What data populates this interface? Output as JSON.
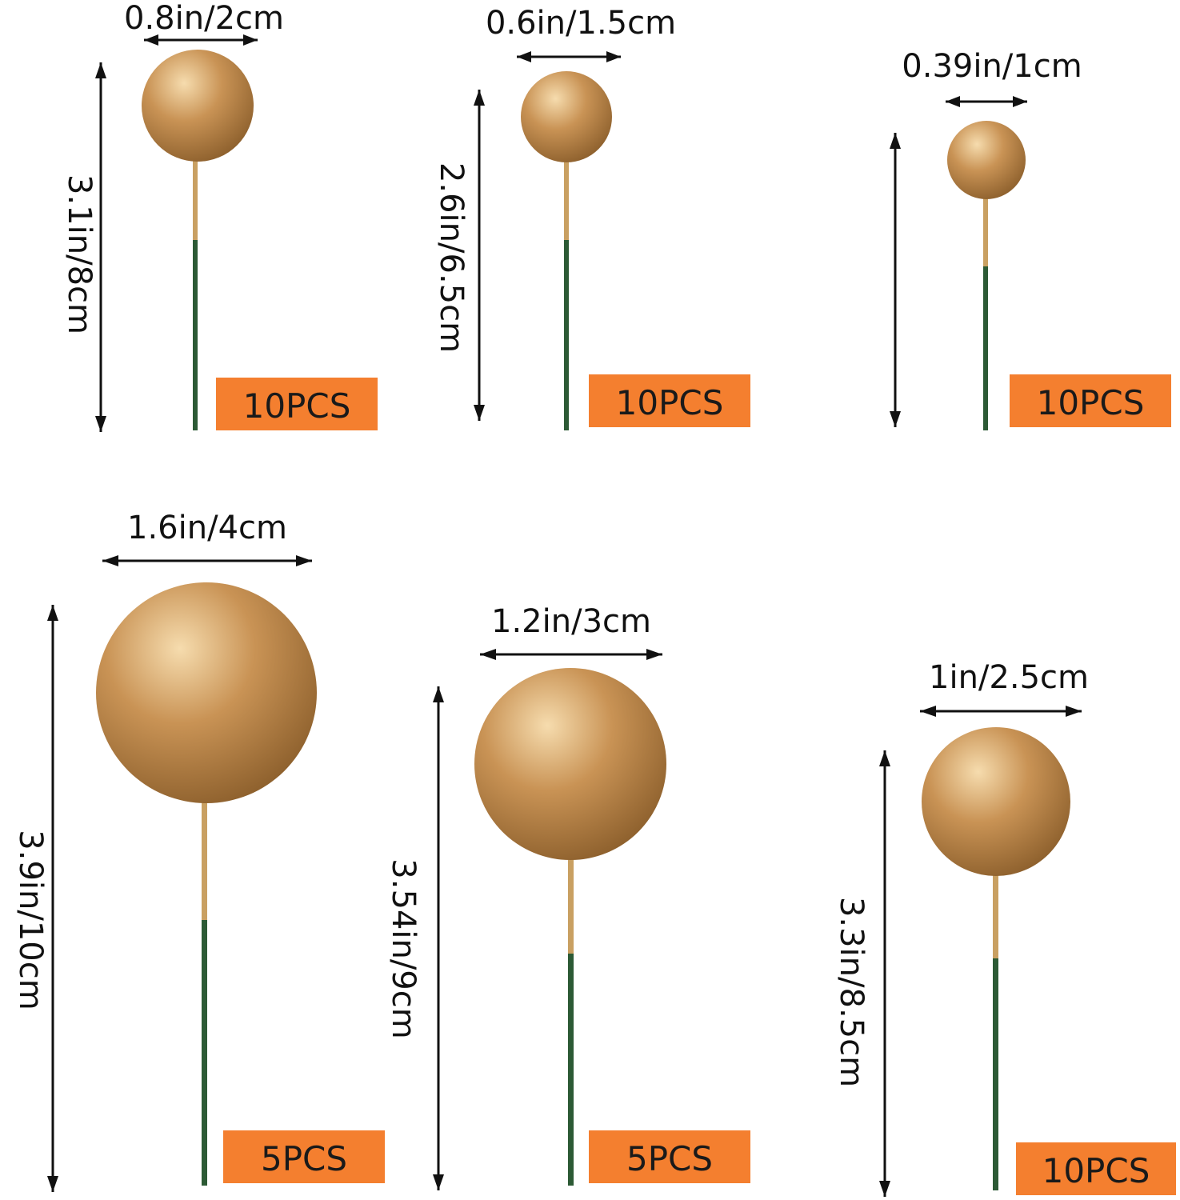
{
  "colors": {
    "badge": "#f47f2f",
    "gold_light": "#f6dcae",
    "gold_mid": "#c99355",
    "gold_dark": "#8c5f2c",
    "stem_gold": "#c9a062",
    "stem_green": "#2c5a35",
    "arrow": "#111111"
  },
  "items": [
    {
      "width_label": "0.8in/2cm",
      "height_label": "3.1in/8cm",
      "count_label": "10PCS"
    },
    {
      "width_label": "0.6in/1.5cm",
      "height_label": "2.6in/6.5cm",
      "count_label": "10PCS"
    },
    {
      "width_label": "0.39in/1cm",
      "height_label": "",
      "count_label": "10PCS"
    },
    {
      "width_label": "1.6in/4cm",
      "height_label": "3.9in/10cm",
      "count_label": "5PCS"
    },
    {
      "width_label": "1.2in/3cm",
      "height_label": "3.54in/9cm",
      "count_label": "5PCS"
    },
    {
      "width_label": "1in/2.5cm",
      "height_label": "3.3in/8.5cm",
      "count_label": "10PCS"
    }
  ]
}
